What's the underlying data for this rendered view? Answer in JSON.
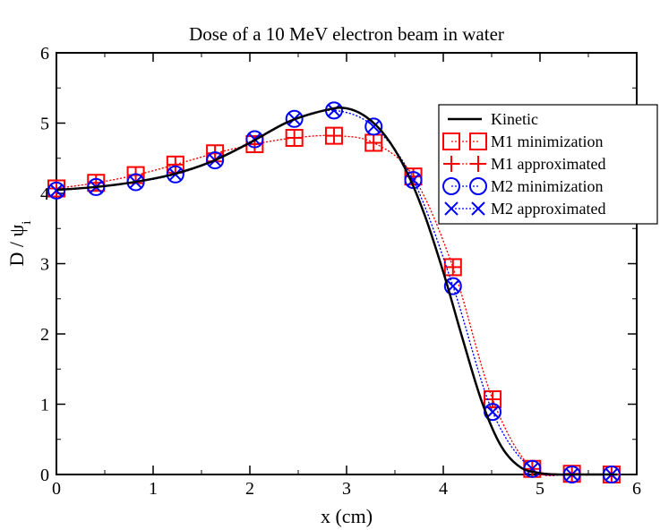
{
  "chart_data": {
    "type": "line",
    "title": "Dose of a 10 MeV electron beam in water",
    "xlabel": "x (cm)",
    "ylabel_main": "D / ψ",
    "ylabel_sub": "i",
    "xlim": [
      0,
      6
    ],
    "ylim": [
      0,
      6
    ],
    "xticks": [
      0,
      1,
      2,
      3,
      4,
      5,
      6
    ],
    "yticks": [
      0,
      1,
      2,
      3,
      4,
      5,
      6
    ],
    "grid": false,
    "legend_position": "top-right",
    "series": [
      {
        "name": "Kinetic",
        "color": "#000000",
        "line": "solid",
        "marker": "none",
        "x": [
          0,
          0.4,
          0.8,
          1.2,
          1.6,
          2.0,
          2.4,
          2.8,
          3.0,
          3.2,
          3.4,
          3.6,
          3.8,
          4.0,
          4.2,
          4.4,
          4.6,
          4.8,
          5.0,
          5.2,
          5.4,
          5.8
        ],
        "y": [
          4.05,
          4.09,
          4.16,
          4.27,
          4.45,
          4.72,
          5.02,
          5.19,
          5.21,
          5.09,
          4.82,
          4.37,
          3.72,
          2.88,
          1.93,
          1.03,
          0.4,
          0.1,
          0.02,
          0.0,
          0.0,
          0.0
        ]
      },
      {
        "name": "M1 minimization",
        "color": "#ff0000",
        "line": "dotted",
        "marker": "square",
        "x": [
          0,
          0.41,
          0.82,
          1.23,
          1.64,
          2.05,
          2.46,
          2.87,
          3.28,
          3.69,
          4.1,
          4.51,
          4.92,
          5.33,
          5.74
        ],
        "y": [
          4.07,
          4.15,
          4.26,
          4.41,
          4.57,
          4.7,
          4.79,
          4.82,
          4.72,
          4.24,
          2.95,
          1.07,
          0.08,
          0.01,
          0.0
        ]
      },
      {
        "name": "M1 approximated",
        "color": "#ff0000",
        "line": "dotted",
        "marker": "plus",
        "x": [
          0,
          0.41,
          0.82,
          1.23,
          1.64,
          2.05,
          2.46,
          2.87,
          3.28,
          3.69,
          4.1,
          4.51,
          4.92,
          5.33,
          5.74
        ],
        "y": [
          4.07,
          4.15,
          4.26,
          4.41,
          4.57,
          4.7,
          4.79,
          4.82,
          4.72,
          4.24,
          2.95,
          1.07,
          0.08,
          0.01,
          0.0
        ]
      },
      {
        "name": "M2 minimization",
        "color": "#0000ff",
        "line": "dotted",
        "marker": "circle",
        "x": [
          0,
          0.41,
          0.82,
          1.23,
          1.64,
          2.05,
          2.46,
          2.87,
          3.28,
          3.69,
          4.1,
          4.51,
          4.92,
          5.33,
          5.74
        ],
        "y": [
          4.04,
          4.09,
          4.16,
          4.27,
          4.47,
          4.77,
          5.06,
          5.18,
          4.95,
          4.19,
          2.68,
          0.89,
          0.08,
          0.0,
          0.0
        ]
      },
      {
        "name": "M2 approximated",
        "color": "#0000ff",
        "line": "dotted",
        "marker": "x",
        "x": [
          0,
          0.41,
          0.82,
          1.23,
          1.64,
          2.05,
          2.46,
          2.87,
          3.28,
          3.69,
          4.1,
          4.51,
          4.92,
          5.33,
          5.74
        ],
        "y": [
          4.04,
          4.09,
          4.16,
          4.27,
          4.47,
          4.77,
          5.06,
          5.18,
          4.95,
          4.19,
          2.68,
          0.89,
          0.08,
          0.0,
          0.0
        ]
      }
    ]
  }
}
